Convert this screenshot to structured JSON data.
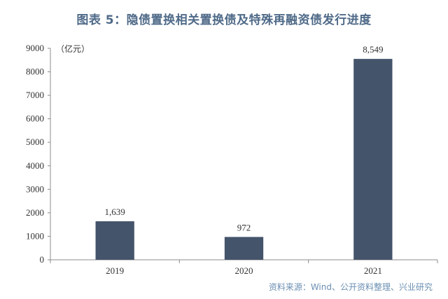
{
  "chart_data": {
    "type": "bar",
    "title": "图表 5：隐债置换相关置换债及特殊再融资债发行进度",
    "unit": "（亿元）",
    "categories": [
      "2019",
      "2020",
      "2021"
    ],
    "values": [
      1639,
      972,
      8549
    ],
    "value_labels": [
      "1,639",
      "972",
      "8,549"
    ],
    "ylim": [
      0,
      9000
    ],
    "yticks": [
      0,
      1000,
      2000,
      3000,
      4000,
      5000,
      6000,
      7000,
      8000,
      9000
    ],
    "xlabel": "",
    "ylabel": "",
    "grid": false,
    "legend": "none",
    "bar_color": "#44546a",
    "title_color": "#4f6a88",
    "source": "资料来源：Wind、公开资料整理、兴业研究"
  }
}
